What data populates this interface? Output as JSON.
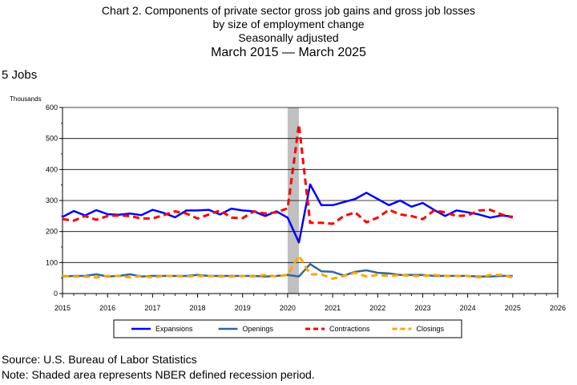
{
  "header": {
    "line1": "Chart 2. Components of private sector gross job gains and gross job losses",
    "line2": "by size of employment change",
    "line3": "Seasonally adjusted",
    "line4": "March 2015 — March 2025"
  },
  "subset_label": "5 Jobs",
  "footer": {
    "source": "Source: U.S. Bureau of Labor Statistics",
    "note": "Note: Shaded area represents NBER defined recession period."
  },
  "chart_data": {
    "type": "line",
    "unit_label": "Thousands",
    "xlim": [
      2015,
      2026
    ],
    "ylim": [
      0,
      600
    ],
    "x_ticks": [
      2015,
      2016,
      2017,
      2018,
      2019,
      2020,
      2021,
      2022,
      2023,
      2024,
      2025,
      2026
    ],
    "y_ticks": [
      0,
      100,
      200,
      300,
      400,
      500,
      600
    ],
    "grid": "horizontal",
    "legend_position": "bottom",
    "recession": {
      "start": 2020.0,
      "end": 2020.25,
      "color": "#c0c0c0"
    },
    "x": [
      2015.0,
      2015.25,
      2015.5,
      2015.75,
      2016.0,
      2016.25,
      2016.5,
      2016.75,
      2017.0,
      2017.25,
      2017.5,
      2017.75,
      2018.0,
      2018.25,
      2018.5,
      2018.75,
      2019.0,
      2019.25,
      2019.5,
      2019.75,
      2020.0,
      2020.25,
      2020.5,
      2020.75,
      2021.0,
      2021.25,
      2021.5,
      2021.75,
      2022.0,
      2022.25,
      2022.5,
      2022.75,
      2023.0,
      2023.25,
      2023.5,
      2023.75,
      2024.0,
      2024.25,
      2024.5,
      2024.75,
      2025.0
    ],
    "series": [
      {
        "name": "Expansions",
        "color": "#0000ff",
        "dash": "solid",
        "width": 2.5,
        "values": [
          247,
          266,
          252,
          269,
          256,
          254,
          258,
          253,
          270,
          260,
          246,
          268,
          268,
          270,
          255,
          274,
          268,
          265,
          250,
          265,
          245,
          165,
          352,
          285,
          285,
          295,
          305,
          325,
          305,
          285,
          300,
          280,
          292,
          270,
          250,
          268,
          262,
          255,
          245,
          252,
          248
        ]
      },
      {
        "name": "Openings",
        "color": "#336699",
        "dash": "solid",
        "width": 2.5,
        "values": [
          55,
          57,
          57,
          62,
          55,
          57,
          62,
          55,
          57,
          57,
          57,
          57,
          60,
          57,
          57,
          57,
          57,
          57,
          55,
          57,
          60,
          55,
          95,
          72,
          70,
          58,
          70,
          75,
          67,
          65,
          60,
          60,
          60,
          57,
          57,
          57,
          57,
          55,
          55,
          57,
          57
        ]
      },
      {
        "name": "Contractions",
        "color": "#ff0000",
        "dash": "8,5",
        "width": 3,
        "values": [
          240,
          235,
          250,
          238,
          250,
          252,
          250,
          242,
          242,
          253,
          265,
          258,
          242,
          255,
          268,
          245,
          243,
          265,
          258,
          262,
          275,
          545,
          228,
          228,
          225,
          250,
          262,
          230,
          245,
          270,
          255,
          250,
          240,
          268,
          262,
          250,
          252,
          268,
          270,
          255,
          245
        ]
      },
      {
        "name": "Closings",
        "color": "#ffa500",
        "dash": "8,5",
        "width": 3,
        "values": [
          57,
          55,
          55,
          52,
          57,
          57,
          52,
          57,
          52,
          57,
          57,
          55,
          57,
          57,
          55,
          55,
          57,
          55,
          60,
          55,
          60,
          122,
          62,
          62,
          48,
          57,
          67,
          55,
          60,
          57,
          60,
          57,
          57,
          60,
          57,
          57,
          57,
          52,
          60,
          60,
          52
        ]
      }
    ]
  }
}
